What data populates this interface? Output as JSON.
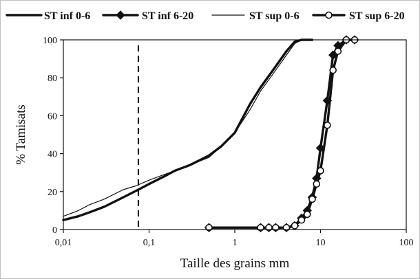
{
  "chart_data": {
    "type": "line",
    "title": "",
    "xlabel": "Taille des grains mm",
    "ylabel": "% Tamisats",
    "xscale": "log",
    "xlim": [
      0.01,
      100
    ],
    "ylim": [
      0,
      100
    ],
    "xticks": [
      "0,01",
      "0,1",
      "1",
      "10",
      "100"
    ],
    "xtick_values": [
      0.01,
      0.1,
      1,
      10,
      100
    ],
    "yticks": [
      "0",
      "20",
      "40",
      "60",
      "80",
      "100"
    ],
    "ytick_values": [
      0,
      20,
      40,
      60,
      80,
      100
    ],
    "grid": false,
    "legend_position": "top",
    "reference_line": {
      "x": 0.075,
      "style": "dashed"
    },
    "series": [
      {
        "name": "ST inf 0-6",
        "marker": "none",
        "line": "thick",
        "x": [
          0.01,
          0.015,
          0.02,
          0.03,
          0.05,
          0.075,
          0.1,
          0.15,
          0.2,
          0.3,
          0.5,
          0.7,
          1,
          1.5,
          2,
          3,
          4,
          5,
          6,
          8
        ],
        "y": [
          5,
          7,
          9,
          12,
          17,
          21,
          24,
          28,
          31,
          34,
          39,
          44,
          51,
          66,
          75,
          86,
          94,
          99,
          100,
          100
        ]
      },
      {
        "name": "ST inf 6-20",
        "marker": "diamond",
        "line": "thick",
        "x": [
          0.5,
          2,
          2.5,
          3,
          4,
          5,
          6,
          7,
          8,
          9,
          10,
          12,
          14,
          16,
          20,
          25
        ],
        "y": [
          1,
          1,
          1,
          1,
          1,
          2,
          6,
          10,
          17,
          27,
          43,
          68,
          92,
          97,
          100,
          100
        ]
      },
      {
        "name": "ST sup 0-6",
        "marker": "none",
        "line": "thin",
        "x": [
          0.01,
          0.015,
          0.02,
          0.03,
          0.05,
          0.07,
          0.1,
          0.15,
          0.2,
          0.3,
          0.5,
          0.7,
          1,
          1.5,
          2,
          3,
          4,
          5,
          6,
          8
        ],
        "y": [
          7,
          10,
          13,
          16,
          21,
          23,
          26,
          29,
          31,
          34,
          38,
          44,
          51,
          63,
          73,
          84,
          92,
          98,
          100,
          100
        ]
      },
      {
        "name": "ST sup 6-20",
        "marker": "open-circle",
        "line": "thick",
        "x": [
          0.5,
          2,
          2.5,
          3,
          4,
          5,
          6,
          7,
          8,
          9,
          10,
          12,
          14,
          16,
          20,
          25
        ],
        "y": [
          1,
          1,
          1,
          1,
          1,
          2,
          5,
          8,
          16,
          24,
          31,
          55,
          84,
          94,
          100,
          100
        ]
      }
    ]
  }
}
